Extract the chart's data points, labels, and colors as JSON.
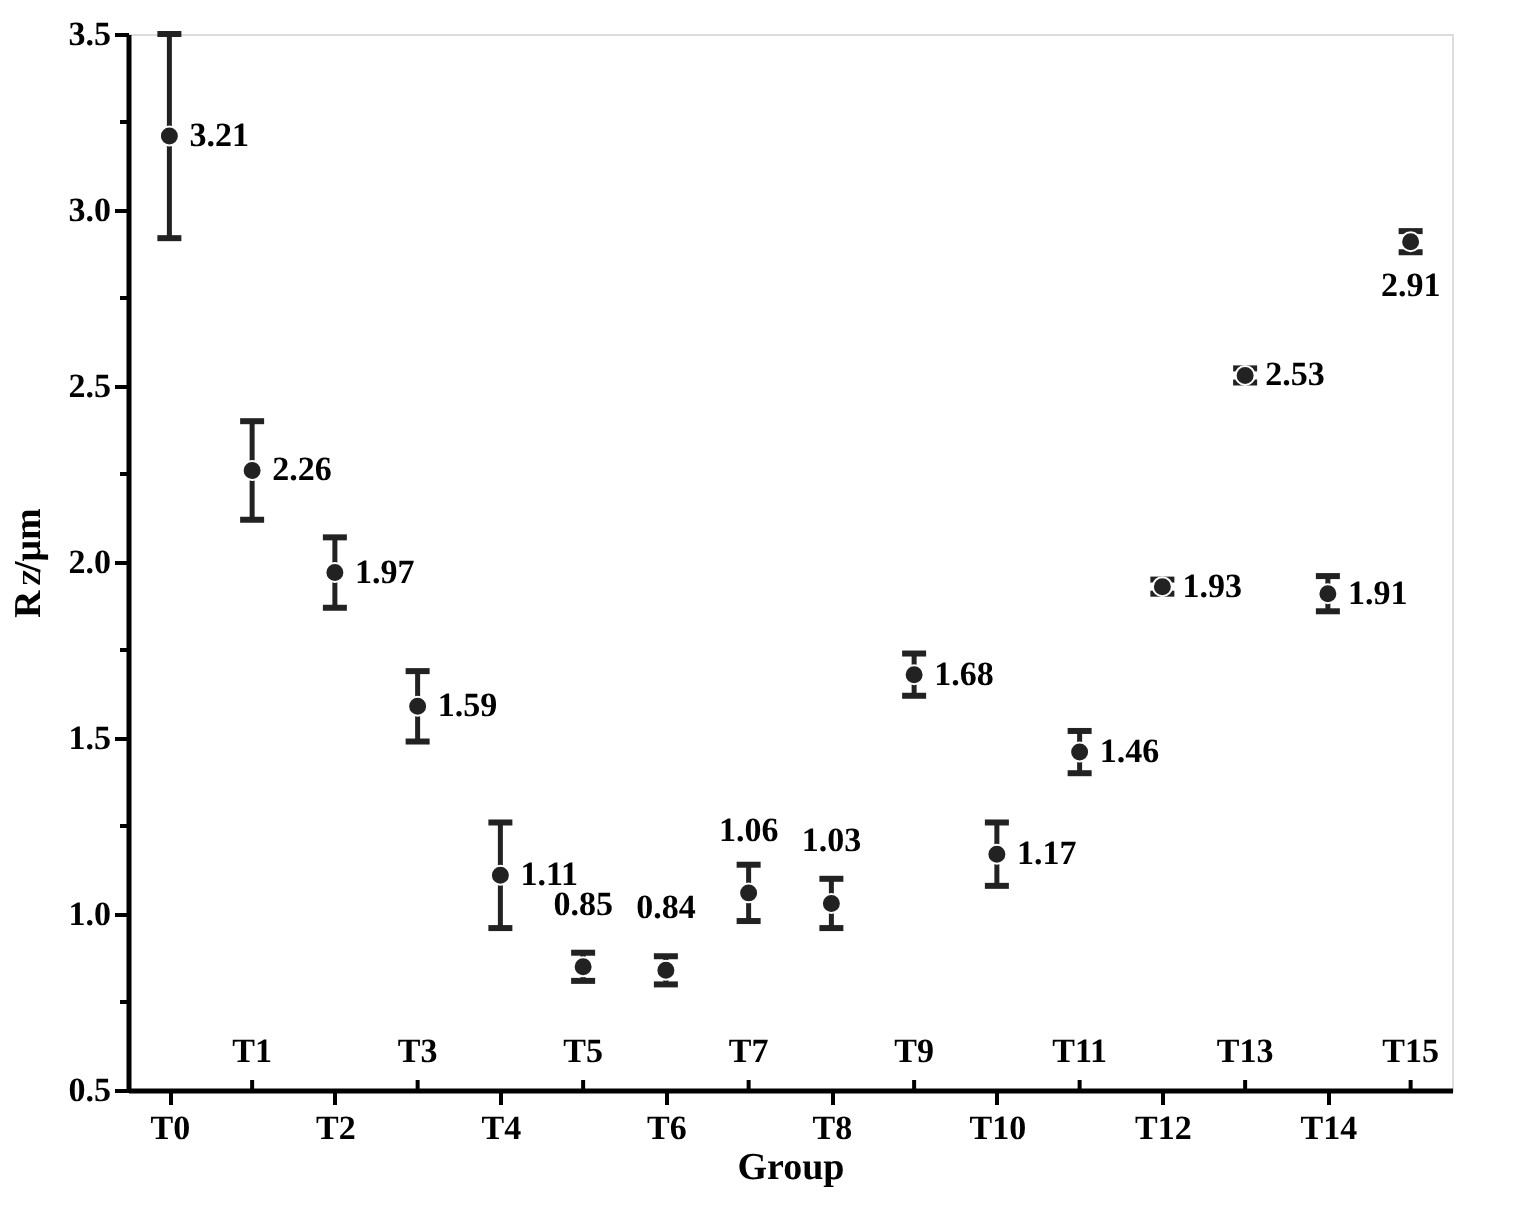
{
  "chart_data": {
    "type": "scatter",
    "xlabel": "Group",
    "ylabel": "R$_{Z}$/μm",
    "categories": [
      "T0",
      "T1",
      "T2",
      "T3",
      "T4",
      "T5",
      "T6",
      "T7",
      "T8",
      "T9",
      "T10",
      "T11",
      "T12",
      "T13",
      "T14",
      "T15"
    ],
    "values": [
      3.21,
      2.26,
      1.97,
      1.59,
      1.11,
      0.85,
      0.84,
      1.06,
      1.03,
      1.68,
      1.17,
      1.46,
      1.93,
      2.53,
      1.91,
      2.91
    ],
    "errors": [
      0.29,
      0.14,
      0.1,
      0.1,
      0.15,
      0.04,
      0.04,
      0.08,
      0.07,
      0.06,
      0.09,
      0.06,
      0.02,
      0.02,
      0.05,
      0.03
    ],
    "color": "#222222",
    "marker": "circle",
    "data_labels": true,
    "ylim": [
      0.5,
      3.5
    ],
    "yticks": [
      0.5,
      {
        "value": 1,
        "label": "1.0"
      },
      1.5,
      {
        "value": 2,
        "label": "2.0"
      },
      2.5,
      {
        "value": 3,
        "label": "3.0"
      },
      3.5
    ],
    "grid": false
  }
}
